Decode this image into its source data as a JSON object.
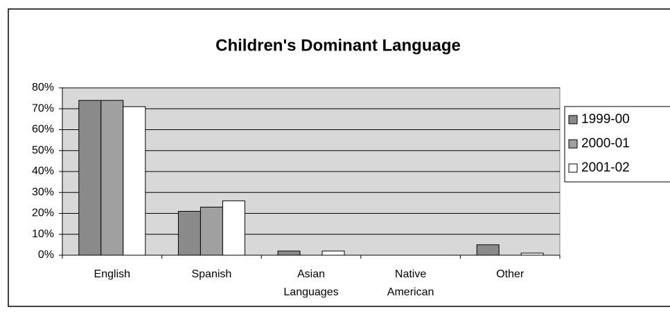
{
  "chart_data": {
    "type": "bar",
    "title": "Children's Dominant Language",
    "categories": [
      "English",
      "Spanish",
      "Asian Languages",
      "Native American",
      "Other"
    ],
    "series": [
      {
        "name": "1999-00",
        "color": "#8a8a8a",
        "values": [
          74,
          21,
          2,
          0,
          5
        ]
      },
      {
        "name": "2000-01",
        "color": "#a0a0a0",
        "values": [
          74,
          23,
          0,
          0,
          0
        ]
      },
      {
        "name": "2001-02",
        "color": "#ffffff",
        "values": [
          71,
          26,
          2,
          0,
          1
        ]
      }
    ],
    "ylim": [
      0,
      80
    ],
    "yticks": [
      {
        "value": 0,
        "label": "0%"
      },
      {
        "value": 10,
        "label": "10%"
      },
      {
        "value": 20,
        "label": "20%"
      },
      {
        "value": 30,
        "label": "30%"
      },
      {
        "value": 40,
        "label": "40%"
      },
      {
        "value": 50,
        "label": "50%"
      },
      {
        "value": 60,
        "label": "60%"
      },
      {
        "value": 70,
        "label": "70%"
      },
      {
        "value": 80,
        "label": "80%"
      }
    ],
    "grid": true,
    "legend": "right"
  }
}
